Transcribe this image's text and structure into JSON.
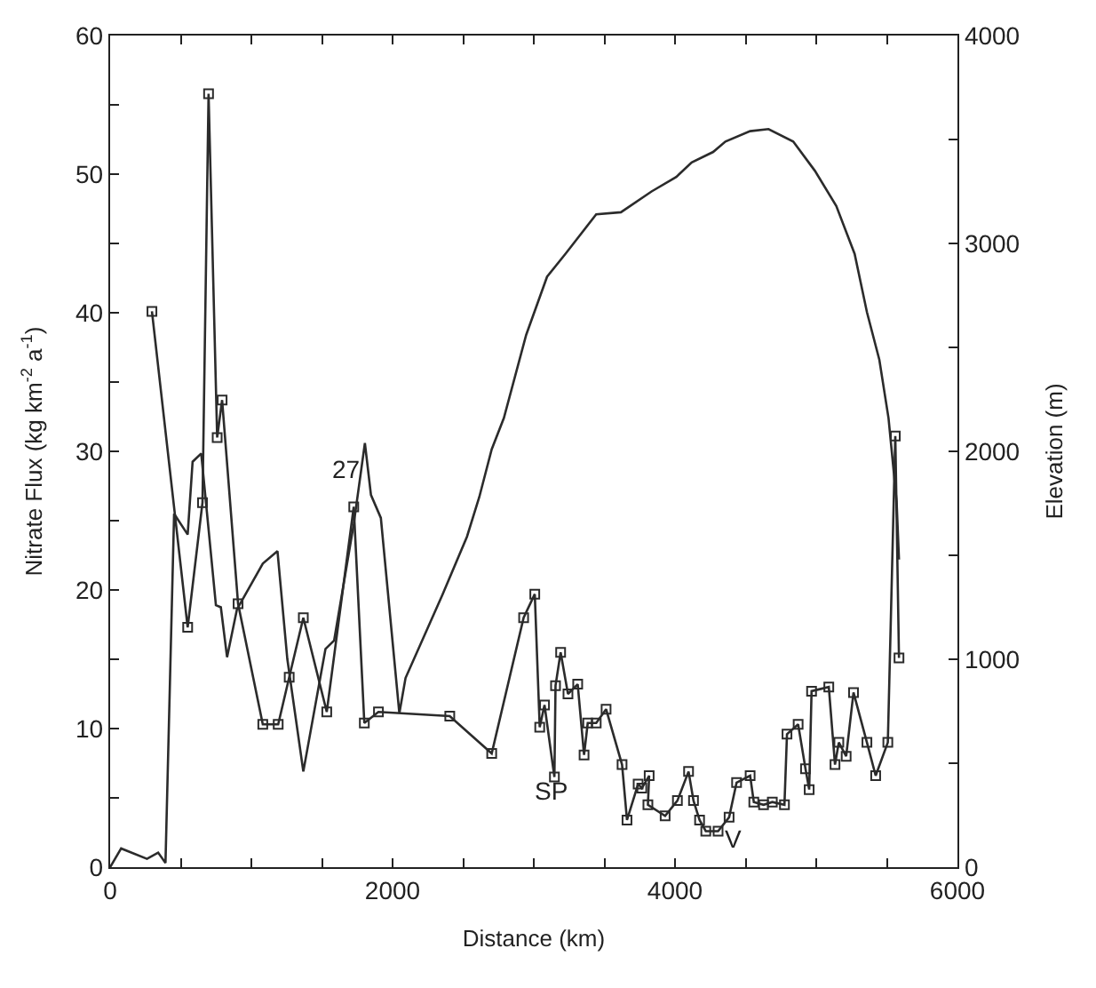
{
  "chart_data": {
    "type": "line",
    "xlabel": "Distance (km)",
    "ylabel": "Nitrate Flux (kg km$^{-2}$ a$^{-1}$)",
    "y2label": "Elevation (m)",
    "xlim": [
      0,
      6000
    ],
    "ylim": [
      0,
      60
    ],
    "y2lim": [
      0,
      4000
    ],
    "xticks": [
      0,
      {
        "value": 500,
        "label": null
      },
      {
        "value": 1000,
        "label": null
      },
      {
        "value": 1500,
        "label": null
      },
      2000,
      {
        "value": 2500,
        "label": null
      },
      {
        "value": 3000,
        "label": null
      },
      {
        "value": 3500,
        "label": null
      },
      4000,
      {
        "value": 4500,
        "label": null
      },
      {
        "value": 5000,
        "label": null
      },
      {
        "value": 5500,
        "label": null
      },
      6000
    ],
    "yticks": [
      0,
      {
        "value": 5,
        "label": null
      },
      10,
      {
        "value": 15,
        "label": null
      },
      20,
      {
        "value": 25,
        "label": null
      },
      30,
      {
        "value": 35,
        "label": null
      },
      40,
      {
        "value": 45,
        "label": null
      },
      50,
      {
        "value": 55,
        "label": null
      },
      60
    ],
    "y2ticks": [
      0,
      {
        "value": 500,
        "label": null
      },
      1000,
      {
        "value": 1500,
        "label": null
      },
      2000,
      {
        "value": 2500,
        "label": null
      },
      3000,
      {
        "value": 3500,
        "label": null
      },
      4000
    ],
    "series": [
      {
        "marker": "none",
        "axis": "y2",
        "color": "#2b2b2b",
        "x": [
          0,
          78,
          261,
          340,
          392,
          453,
          549,
          584,
          645,
          749,
          784,
          828,
          898,
          1081,
          1185,
          1255,
          1368,
          1525,
          1586,
          1725,
          1804,
          1847,
          1917,
          2048,
          2092,
          2353,
          2527,
          2614,
          2702,
          2788,
          2946,
          3094,
          3224,
          3442,
          3617,
          3834,
          4009,
          4118,
          4270,
          4357,
          4532,
          4662,
          4837,
          4990,
          5142,
          5272,
          5359,
          5447,
          5512,
          5569,
          5586
        ],
        "values": [
          0,
          90,
          40,
          70,
          20,
          1700,
          1600,
          1950,
          1990,
          1260,
          1250,
          1010,
          1240,
          1460,
          1520,
          1000,
          460,
          1050,
          1090,
          1650,
          2040,
          1790,
          1680,
          740,
          910,
          1310,
          1590,
          1780,
          2010,
          2160,
          2560,
          2840,
          2950,
          3140,
          3150,
          3250,
          3320,
          3390,
          3440,
          3490,
          3540,
          3550,
          3490,
          3350,
          3180,
          2950,
          2670,
          2440,
          2160,
          1760,
          1480
        ]
      },
      {
        "marker": "square",
        "color": "#2b2b2b",
        "x": [
          296,
          549,
          654,
          697,
          758,
          793,
          906,
          1081,
          1190,
          1268,
          1368,
          1534,
          1725,
          1800,
          1900,
          2405,
          2702,
          2928,
          3007,
          3042,
          3076,
          3146,
          3154,
          3190,
          3242,
          3311,
          3356,
          3382,
          3442,
          3512,
          3625,
          3660,
          3739,
          3765,
          3817,
          3808,
          3930,
          4017,
          4096,
          4131,
          4174,
          4218,
          4305,
          4383,
          4436,
          4532,
          4558,
          4627,
          4689,
          4775,
          4793,
          4872,
          4924,
          4950,
          4967,
          5089,
          5133,
          5160,
          5212,
          5264,
          5359,
          5421,
          5507,
          5560,
          5586
        ],
        "values": [
          40.1,
          17.3,
          26.3,
          55.8,
          31.0,
          33.7,
          19.0,
          10.3,
          10.3,
          13.7,
          18.0,
          11.2,
          26.0,
          10.4,
          11.2,
          10.9,
          8.2,
          18.0,
          19.7,
          10.1,
          11.7,
          6.5,
          13.1,
          15.5,
          12.5,
          13.2,
          8.1,
          10.4,
          10.4,
          11.4,
          7.4,
          3.4,
          6.0,
          5.7,
          6.6,
          4.5,
          3.7,
          4.8,
          6.9,
          4.8,
          3.4,
          2.6,
          2.6,
          3.6,
          6.1,
          6.6,
          4.7,
          4.5,
          4.7,
          4.5,
          9.6,
          10.3,
          7.1,
          5.6,
          12.7,
          13.0,
          7.4,
          9.0,
          8.0,
          12.6,
          9.0,
          6.6,
          9.0,
          31.1,
          15.1
        ]
      }
    ],
    "annotations": [
      "27",
      "SP",
      "V"
    ]
  }
}
